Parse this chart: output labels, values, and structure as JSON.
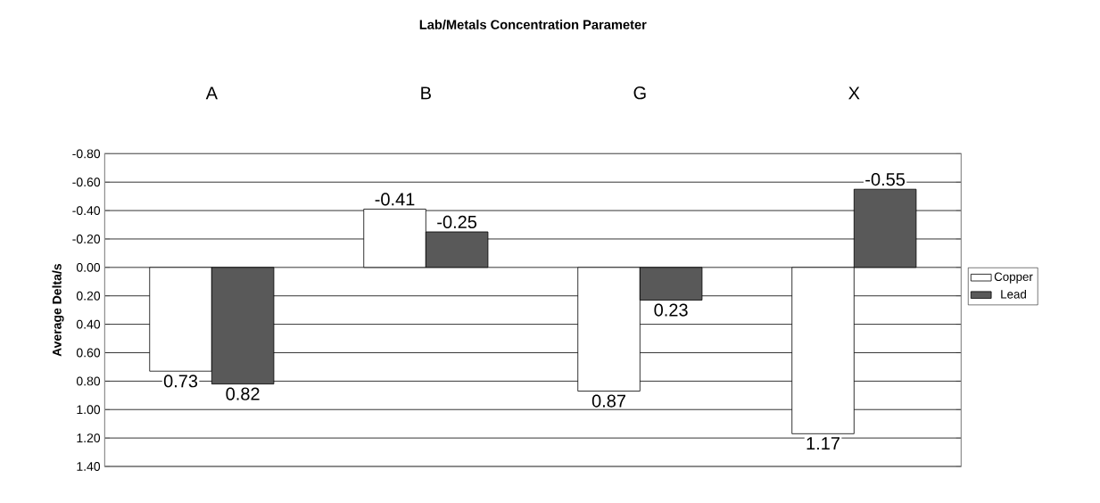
{
  "chart_data": {
    "type": "bar",
    "title": "Lab/Metals Concentration Parameter",
    "ylabel": "Average Delta/s",
    "categories": [
      "A",
      "B",
      "G",
      "X"
    ],
    "series": [
      {
        "name": "Copper",
        "color": "#ffffff",
        "values": [
          0.73,
          -0.41,
          0.87,
          1.17
        ],
        "value_labels": [
          "0.73",
          "-0.41",
          "0.87",
          "1.17"
        ]
      },
      {
        "name": "Lead",
        "color": "#595959",
        "values": [
          0.82,
          -0.25,
          0.23,
          -0.55
        ],
        "value_labels": [
          "0.82",
          "-0.25",
          "0.23",
          "-0.55"
        ]
      }
    ],
    "ylim": [
      1.4,
      -0.8
    ],
    "yticks": [
      {
        "value": -0.8,
        "label": "-0.80"
      },
      {
        "value": -0.6,
        "label": "-0.60"
      },
      {
        "value": -0.4,
        "label": "-0.40"
      },
      {
        "value": -0.2,
        "label": "-0.20"
      },
      {
        "value": 0,
        "label": "0.00"
      },
      {
        "value": 0.2,
        "label": "0.20"
      },
      {
        "value": 0.4,
        "label": "0.40"
      },
      {
        "value": 0.6,
        "label": "0.60"
      },
      {
        "value": 0.8,
        "label": "0.80"
      },
      {
        "value": 1.0,
        "label": "1.00"
      },
      {
        "value": 1.2,
        "label": "1.20"
      },
      {
        "value": 1.4,
        "label": "1.40"
      }
    ],
    "grid": "y",
    "legend": "right"
  }
}
